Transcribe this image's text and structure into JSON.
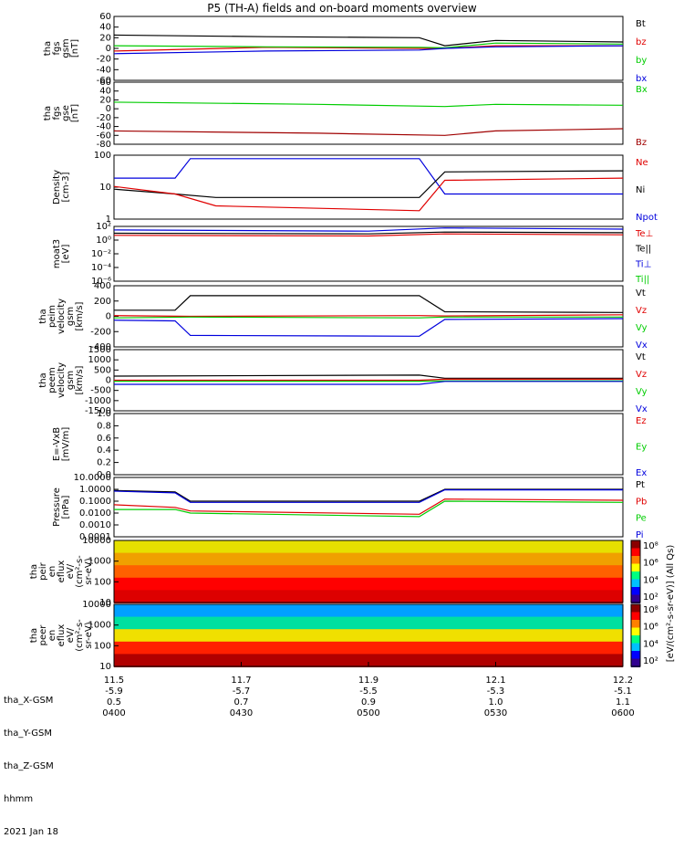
{
  "title": "P5 (TH-A) fields and on-board moments overview",
  "date_label": "2021 Jan 18",
  "colors": {
    "black": "#000000",
    "red": "#e00000",
    "green": "#00cc00",
    "blue": "#0000dd",
    "darkred": "#a00000"
  },
  "ephemeris": {
    "rows": [
      "tha_X-GSM",
      "tha_Y-GSM",
      "tha_Z-GSM",
      "hhmm"
    ],
    "ticks": [
      [
        "11.5",
        "11.7",
        "11.9",
        "12.1",
        "12.2"
      ],
      [
        "-5.9",
        "-5.7",
        "-5.5",
        "-5.3",
        "-5.1"
      ],
      [
        "0.5",
        "0.7",
        "0.9",
        "1.0",
        "1.1"
      ],
      [
        "0400",
        "0430",
        "0500",
        "0530",
        "0600"
      ]
    ]
  },
  "chart_data": [
    {
      "type": "line",
      "ylabel": [
        "tha",
        "fgs",
        "gsm",
        "[nT]"
      ],
      "ylim": [
        -60,
        60
      ],
      "yticks": [
        "60",
        "40",
        "20",
        "0",
        "-20",
        "-40",
        "-60"
      ],
      "legend": [
        {
          "name": "Bt",
          "color": "black"
        },
        {
          "name": "bz",
          "color": "red"
        },
        {
          "name": "by",
          "color": "green"
        },
        {
          "name": "bx",
          "color": "blue"
        }
      ],
      "series": [
        {
          "name": "Bt",
          "color": "black",
          "x": [
            0,
            0.3,
            0.6,
            0.65,
            0.75,
            1.0
          ],
          "y": [
            25,
            22,
            20,
            5,
            15,
            12
          ]
        },
        {
          "name": "bz",
          "color": "red",
          "x": [
            0,
            0.3,
            0.6,
            0.65,
            0.75,
            1.0
          ],
          "y": [
            -5,
            2,
            0,
            0,
            5,
            5
          ]
        },
        {
          "name": "by",
          "color": "green",
          "x": [
            0,
            0.3,
            0.6,
            0.65,
            0.75,
            1.0
          ],
          "y": [
            5,
            3,
            2,
            1,
            10,
            8
          ]
        },
        {
          "name": "bx",
          "color": "blue",
          "x": [
            0,
            0.3,
            0.6,
            0.65,
            0.75,
            1.0
          ],
          "y": [
            -10,
            -5,
            -3,
            0,
            3,
            5
          ]
        }
      ]
    },
    {
      "type": "line",
      "ylabel": [
        "tha",
        "fgs",
        "gse",
        "[nT]"
      ],
      "ylim": [
        -80,
        60
      ],
      "yticks": [
        "60",
        "40",
        "20",
        "0",
        "-20",
        "-40",
        "-60",
        "-80"
      ],
      "legend": [
        {
          "name": "Bx",
          "color": "green"
        },
        {
          "name": "Bz",
          "color": "darkred"
        }
      ],
      "series": [
        {
          "name": "Bx",
          "color": "green",
          "x": [
            0,
            0.4,
            0.65,
            0.75,
            1.0
          ],
          "y": [
            15,
            10,
            5,
            10,
            8
          ]
        },
        {
          "name": "Bz",
          "color": "darkred",
          "x": [
            0,
            0.4,
            0.65,
            0.75,
            1.0
          ],
          "y": [
            -50,
            -55,
            -60,
            -50,
            -45
          ]
        }
      ]
    },
    {
      "type": "line",
      "ylabel": [
        "Density",
        "[cm-3]"
      ],
      "ylim": [
        1,
        200
      ],
      "yticks": [
        "100",
        "10",
        "1"
      ],
      "legend": [
        {
          "name": "Ne",
          "color": "red"
        },
        {
          "name": "Ni",
          "color": "black"
        },
        {
          "name": "Npot",
          "color": "blue"
        }
      ],
      "series": [
        {
          "name": "Npot",
          "color": "blue",
          "x": [
            0,
            0.12,
            0.15,
            0.6,
            0.65,
            1.0
          ],
          "y": [
            30,
            30,
            150,
            150,
            8,
            8
          ]
        },
        {
          "name": "Ni",
          "color": "black",
          "x": [
            0,
            0.12,
            0.2,
            0.6,
            0.65,
            1.0
          ],
          "y": [
            12,
            8,
            6,
            6,
            50,
            55
          ]
        },
        {
          "name": "Ne",
          "color": "red",
          "x": [
            0,
            0.12,
            0.2,
            0.6,
            0.65,
            1.0
          ],
          "y": [
            15,
            8,
            3,
            2,
            25,
            30
          ]
        }
      ]
    },
    {
      "type": "line",
      "ylabel": [
        "moat3",
        "[eV]"
      ],
      "ylim": [
        1e-06,
        100
      ],
      "yticks": [
        "10²",
        "10⁰",
        "10⁻²",
        "10⁻⁴",
        "10⁻⁶"
      ],
      "legend": [
        {
          "name": "Te⊥",
          "color": "red"
        },
        {
          "name": "Te||",
          "color": "black"
        },
        {
          "name": "Ti⊥",
          "color": "blue"
        },
        {
          "name": "Ti||",
          "color": "green"
        }
      ],
      "series": [
        {
          "name": "Ti⊥",
          "color": "blue",
          "x": [
            0,
            0.5,
            0.65,
            1.0
          ],
          "y": [
            30,
            20,
            60,
            40
          ]
        },
        {
          "name": "Te||",
          "color": "black",
          "x": [
            0,
            0.5,
            0.65,
            1.0
          ],
          "y": [
            10,
            8,
            15,
            12
          ]
        },
        {
          "name": "Te⊥",
          "color": "red",
          "x": [
            0,
            0.5,
            0.65,
            1.0
          ],
          "y": [
            5,
            4,
            8,
            6
          ]
        }
      ]
    },
    {
      "type": "line",
      "ylabel": [
        "tha",
        "peim",
        "velocity",
        "gsm",
        "[km/s]"
      ],
      "ylim": [
        -400,
        400
      ],
      "yticks": [
        "400",
        "200",
        "0",
        "-200",
        "-400"
      ],
      "legend": [
        {
          "name": "Vt",
          "color": "black"
        },
        {
          "name": "Vz",
          "color": "red"
        },
        {
          "name": "Vy",
          "color": "green"
        },
        {
          "name": "Vx",
          "color": "blue"
        }
      ],
      "series": [
        {
          "name": "Vt",
          "color": "black",
          "x": [
            0,
            0.12,
            0.15,
            0.6,
            0.65,
            1.0
          ],
          "y": [
            80,
            80,
            270,
            270,
            60,
            50
          ]
        },
        {
          "name": "Vz",
          "color": "red",
          "x": [
            0,
            0.15,
            0.6,
            0.65,
            1.0
          ],
          "y": [
            10,
            0,
            10,
            5,
            20
          ]
        },
        {
          "name": "Vy",
          "color": "green",
          "x": [
            0,
            0.15,
            0.6,
            0.65,
            1.0
          ],
          "y": [
            -20,
            -10,
            -20,
            -10,
            -10
          ]
        },
        {
          "name": "Vx",
          "color": "blue",
          "x": [
            0,
            0.12,
            0.15,
            0.6,
            0.65,
            1.0
          ],
          "y": [
            -50,
            -60,
            -250,
            -260,
            -40,
            -30
          ]
        }
      ]
    },
    {
      "type": "line",
      "ylabel": [
        "tha",
        "peem",
        "velocity",
        "gsm",
        "[km/s]"
      ],
      "ylim": [
        -1500,
        1500
      ],
      "yticks": [
        "1500",
        "1000",
        "500",
        "0",
        "-500",
        "-1000",
        "-1500"
      ],
      "legend": [
        {
          "name": "Vt",
          "color": "black"
        },
        {
          "name": "Vz",
          "color": "red"
        },
        {
          "name": "Vy",
          "color": "green"
        },
        {
          "name": "Vx",
          "color": "blue"
        }
      ],
      "series": [
        {
          "name": "Vt",
          "color": "black",
          "x": [
            0,
            0.6,
            0.65,
            1.0
          ],
          "y": [
            200,
            250,
            100,
            100
          ]
        },
        {
          "name": "Vz",
          "color": "red",
          "x": [
            0,
            0.6,
            0.65,
            1.0
          ],
          "y": [
            0,
            0,
            50,
            50
          ]
        },
        {
          "name": "Vy",
          "color": "green",
          "x": [
            0,
            0.6,
            0.65,
            1.0
          ],
          "y": [
            -50,
            -50,
            -30,
            -30
          ]
        },
        {
          "name": "Vx",
          "color": "blue",
          "x": [
            0,
            0.6,
            0.65,
            1.0
          ],
          "y": [
            -200,
            -200,
            -60,
            -60
          ]
        }
      ]
    },
    {
      "type": "line",
      "ylabel": [
        "E=-VxB",
        "[mV/m]"
      ],
      "ylim": [
        0,
        1
      ],
      "yticks": [
        "1.0",
        "0.8",
        "0.6",
        "0.4",
        "0.2",
        "0.0"
      ],
      "legend": [
        {
          "name": "Ez",
          "color": "red"
        },
        {
          "name": "Ey",
          "color": "green"
        },
        {
          "name": "Ex",
          "color": "blue"
        }
      ],
      "series": []
    },
    {
      "type": "line",
      "ylabel": [
        "Pressure",
        "[nPa]"
      ],
      "ylim": [
        0.0001,
        10
      ],
      "yticks": [
        "10.0000",
        "1.0000",
        "0.1000",
        "0.0100",
        "0.0010",
        "0.0001"
      ],
      "legend": [
        {
          "name": "Pt",
          "color": "black"
        },
        {
          "name": "Pb",
          "color": "red"
        },
        {
          "name": "Pe",
          "color": "green"
        },
        {
          "name": "Pi",
          "color": "blue"
        }
      ],
      "series": [
        {
          "name": "Pt",
          "color": "black",
          "x": [
            0,
            0.12,
            0.15,
            0.6,
            0.65,
            1.0
          ],
          "y": [
            0.8,
            0.6,
            0.1,
            0.1,
            1.0,
            1.0
          ]
        },
        {
          "name": "Pi",
          "color": "blue",
          "x": [
            0,
            0.12,
            0.15,
            0.6,
            0.65,
            1.0
          ],
          "y": [
            0.7,
            0.5,
            0.08,
            0.08,
            0.9,
            0.9
          ]
        },
        {
          "name": "Pb",
          "color": "red",
          "x": [
            0,
            0.12,
            0.15,
            0.6,
            0.65,
            1.0
          ],
          "y": [
            0.05,
            0.03,
            0.015,
            0.008,
            0.15,
            0.12
          ]
        },
        {
          "name": "Pe",
          "color": "green",
          "x": [
            0,
            0.12,
            0.15,
            0.6,
            0.65,
            1.0
          ],
          "y": [
            0.02,
            0.02,
            0.01,
            0.005,
            0.1,
            0.08
          ]
        }
      ]
    },
    {
      "type": "heatmap",
      "ylabel": [
        "tha",
        "peir",
        "en",
        "eflux",
        "eV/",
        "(cm²-s-",
        "sr-eV)"
      ],
      "yticks": [
        "10000",
        "1000",
        "100",
        "10"
      ],
      "colorbar_ticks": [
        "10⁸",
        "10⁶",
        "10⁴",
        "10²"
      ]
    },
    {
      "type": "heatmap",
      "ylabel": [
        "tha",
        "peer",
        "en",
        "eflux",
        "eV/",
        "(cm²-s-",
        "sr-eV)"
      ],
      "yticks": [
        "10000",
        "1000",
        "100",
        "10"
      ],
      "colorbar_ticks": [
        "10⁸",
        "10⁶",
        "10⁴",
        "10²"
      ],
      "colorbar_label": "[eV/(cm²-s-sr-eV)] (All Qs)"
    }
  ]
}
